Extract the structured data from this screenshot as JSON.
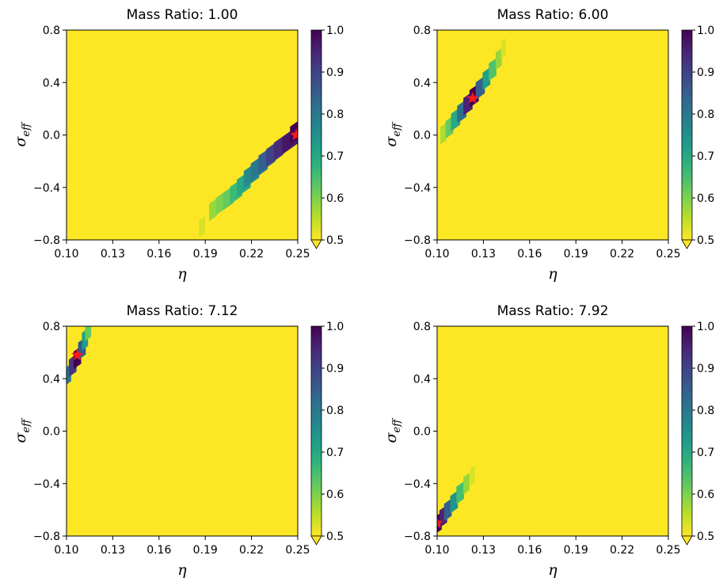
{
  "colorbar": {
    "ticks": [
      "0.5",
      "0.6",
      "0.7",
      "0.8",
      "0.9",
      "1.0"
    ],
    "min": 0.5,
    "max": 1.0,
    "extend": "min",
    "colormap": "viridis (reversed)"
  },
  "marker_color": "#ff1a1a",
  "chart_data": [
    {
      "type": "heatmap",
      "title": "Mass Ratio: 1.00",
      "xlabel": "η",
      "ylabel_main": "σ",
      "ylabel_sub": "eff",
      "xlim": [
        0.1,
        0.25
      ],
      "ylim": [
        -0.8,
        0.8
      ],
      "xticks": [
        "0.10",
        "0.13",
        "0.16",
        "0.19",
        "0.22",
        "0.25"
      ],
      "yticks": [
        "−0.8",
        "−0.4",
        "0.0",
        "0.4",
        "0.8"
      ],
      "band": [
        {
          "x": 0.188,
          "y": -0.7,
          "v": 0.53,
          "w": 0.004
        },
        {
          "x": 0.195,
          "y": -0.57,
          "v": 0.58,
          "w": 0.005
        },
        {
          "x": 0.2,
          "y": -0.52,
          "v": 0.6,
          "w": 0.006
        },
        {
          "x": 0.205,
          "y": -0.48,
          "v": 0.62,
          "w": 0.007
        },
        {
          "x": 0.21,
          "y": -0.43,
          "v": 0.66,
          "w": 0.008
        },
        {
          "x": 0.215,
          "y": -0.37,
          "v": 0.7,
          "w": 0.009
        },
        {
          "x": 0.22,
          "y": -0.3,
          "v": 0.76,
          "w": 0.01
        },
        {
          "x": 0.225,
          "y": -0.24,
          "v": 0.8,
          "w": 0.011
        },
        {
          "x": 0.23,
          "y": -0.18,
          "v": 0.85,
          "w": 0.011
        },
        {
          "x": 0.235,
          "y": -0.13,
          "v": 0.9,
          "w": 0.011
        },
        {
          "x": 0.24,
          "y": -0.08,
          "v": 0.94,
          "w": 0.011
        },
        {
          "x": 0.245,
          "y": -0.04,
          "v": 0.97,
          "w": 0.01
        },
        {
          "x": 0.249,
          "y": 0.03,
          "v": 1.0,
          "w": 0.008
        }
      ],
      "best": {
        "x": 0.249,
        "y": 0.0
      }
    },
    {
      "type": "heatmap",
      "title": "Mass Ratio: 6.00",
      "xlabel": "η",
      "ylabel_main": "σ",
      "ylabel_sub": "eff",
      "xlim": [
        0.1,
        0.25
      ],
      "ylim": [
        -0.8,
        0.8
      ],
      "xticks": [
        "0.10",
        "0.13",
        "0.16",
        "0.19",
        "0.22",
        "0.25"
      ],
      "yticks": [
        "−0.8",
        "−0.4",
        "0.0",
        "0.4",
        "0.8"
      ],
      "band": [
        {
          "x": 0.104,
          "y": 0.01,
          "v": 0.56,
          "w": 0.004
        },
        {
          "x": 0.108,
          "y": 0.06,
          "v": 0.62,
          "w": 0.005
        },
        {
          "x": 0.112,
          "y": 0.12,
          "v": 0.7,
          "w": 0.006
        },
        {
          "x": 0.116,
          "y": 0.18,
          "v": 0.82,
          "w": 0.006
        },
        {
          "x": 0.12,
          "y": 0.24,
          "v": 0.95,
          "w": 0.006
        },
        {
          "x": 0.124,
          "y": 0.3,
          "v": 1.0,
          "w": 0.006
        },
        {
          "x": 0.128,
          "y": 0.36,
          "v": 0.85,
          "w": 0.006
        },
        {
          "x": 0.132,
          "y": 0.43,
          "v": 0.72,
          "w": 0.005
        },
        {
          "x": 0.136,
          "y": 0.5,
          "v": 0.64,
          "w": 0.005
        },
        {
          "x": 0.14,
          "y": 0.58,
          "v": 0.58,
          "w": 0.004
        },
        {
          "x": 0.143,
          "y": 0.66,
          "v": 0.53,
          "w": 0.003
        }
      ],
      "best": {
        "x": 0.123,
        "y": 0.28
      }
    },
    {
      "type": "heatmap",
      "title": "Mass Ratio: 7.12",
      "xlabel": "η",
      "ylabel_main": "σ",
      "ylabel_sub": "eff",
      "xlim": [
        0.1,
        0.25
      ],
      "ylim": [
        -0.8,
        0.8
      ],
      "xticks": [
        "0.10",
        "0.13",
        "0.16",
        "0.19",
        "0.22",
        "0.25"
      ],
      "yticks": [
        "−0.8",
        "−0.4",
        "0.0",
        "0.4",
        "0.8"
      ],
      "band": [
        {
          "x": 0.101,
          "y": 0.43,
          "v": 0.8,
          "w": 0.004
        },
        {
          "x": 0.104,
          "y": 0.5,
          "v": 0.92,
          "w": 0.005
        },
        {
          "x": 0.107,
          "y": 0.56,
          "v": 1.0,
          "w": 0.005
        },
        {
          "x": 0.11,
          "y": 0.63,
          "v": 0.86,
          "w": 0.005
        },
        {
          "x": 0.112,
          "y": 0.7,
          "v": 0.72,
          "w": 0.004
        },
        {
          "x": 0.114,
          "y": 0.77,
          "v": 0.62,
          "w": 0.004
        }
      ],
      "best": {
        "x": 0.107,
        "y": 0.58
      }
    },
    {
      "type": "heatmap",
      "title": "Mass Ratio: 7.92",
      "xlabel": "η",
      "ylabel_main": "σ",
      "ylabel_sub": "eff",
      "xlim": [
        0.1,
        0.25
      ],
      "ylim": [
        -0.8,
        0.8
      ],
      "xticks": [
        "0.10",
        "0.13",
        "0.16",
        "0.19",
        "0.22",
        "0.25"
      ],
      "yticks": [
        "−0.8",
        "−0.4",
        "0.0",
        "0.4",
        "0.8"
      ],
      "band": [
        {
          "x": 0.101,
          "y": -0.7,
          "v": 1.0,
          "w": 0.004
        },
        {
          "x": 0.104,
          "y": -0.65,
          "v": 0.95,
          "w": 0.005
        },
        {
          "x": 0.107,
          "y": -0.6,
          "v": 0.85,
          "w": 0.005
        },
        {
          "x": 0.111,
          "y": -0.54,
          "v": 0.74,
          "w": 0.005
        },
        {
          "x": 0.115,
          "y": -0.47,
          "v": 0.65,
          "w": 0.005
        },
        {
          "x": 0.119,
          "y": -0.4,
          "v": 0.58,
          "w": 0.004
        },
        {
          "x": 0.123,
          "y": -0.34,
          "v": 0.53,
          "w": 0.003
        }
      ],
      "best": {
        "x": 0.1,
        "y": -0.7
      }
    }
  ]
}
